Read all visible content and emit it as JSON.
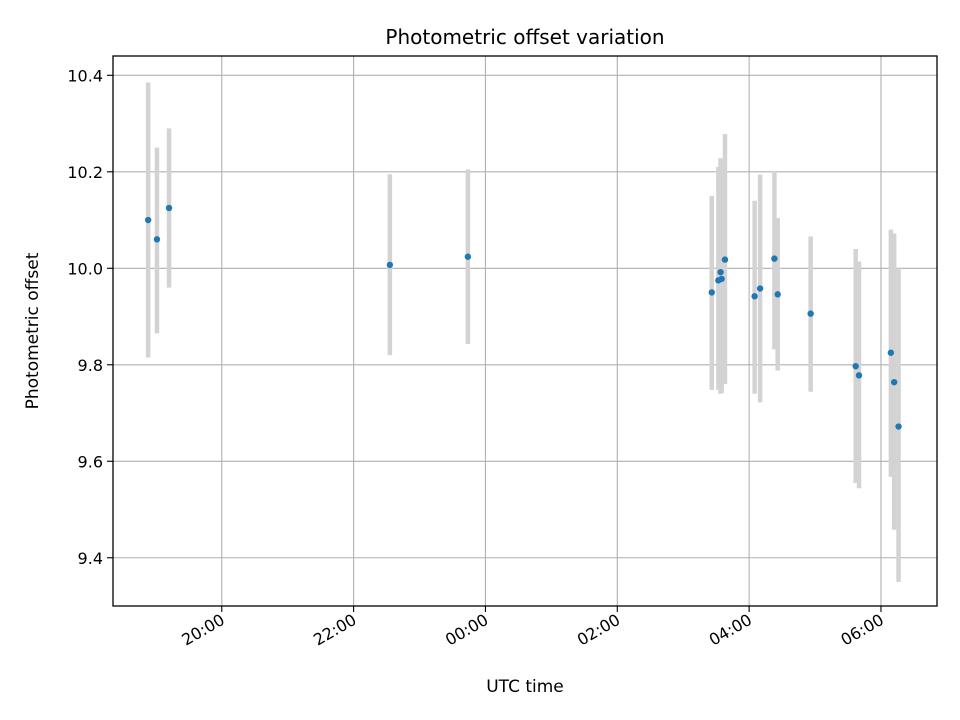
{
  "chart_data": {
    "type": "scatter",
    "title": "Photometric offset variation",
    "xlabel": "UTC time",
    "ylabel": "Photometric offset",
    "x_axis_type": "time",
    "xlim": [
      "18:21",
      "06:51"
    ],
    "ylim": [
      9.3,
      10.44
    ],
    "x_ticks": [
      "20:00",
      "22:00",
      "00:00",
      "02:00",
      "04:00",
      "06:00"
    ],
    "y_ticks": [
      9.4,
      9.6,
      9.8,
      10.0,
      10.2,
      10.4
    ],
    "grid": true,
    "colors": {
      "point": "#1f77b4",
      "errorbar": "#d3d3d3",
      "grid": "#b0b0b0"
    },
    "points": [
      {
        "x": "18:53",
        "y": 10.1,
        "err_low": 9.815,
        "err_high": 10.385
      },
      {
        "x": "19:01",
        "y": 10.06,
        "err_low": 9.865,
        "err_high": 10.25
      },
      {
        "x": "19:12",
        "y": 10.125,
        "err_low": 9.96,
        "err_high": 10.29
      },
      {
        "x": "22:33",
        "y": 10.007,
        "err_low": 9.82,
        "err_high": 10.195
      },
      {
        "x": "23:44",
        "y": 10.024,
        "err_low": 9.843,
        "err_high": 10.205
      },
      {
        "x": "03:26",
        "y": 9.95,
        "err_low": 9.748,
        "err_high": 10.15
      },
      {
        "x": "03:32",
        "y": 9.975,
        "err_low": 9.748,
        "err_high": 10.21
      },
      {
        "x": "03:34",
        "y": 9.992,
        "err_low": 9.74,
        "err_high": 10.228
      },
      {
        "x": "03:35",
        "y": 9.978,
        "err_low": 9.742,
        "err_high": 10.215
      },
      {
        "x": "03:38",
        "y": 10.018,
        "err_low": 9.76,
        "err_high": 10.278
      },
      {
        "x": "04:05",
        "y": 9.942,
        "err_low": 9.74,
        "err_high": 10.14
      },
      {
        "x": "04:10",
        "y": 9.958,
        "err_low": 9.722,
        "err_high": 10.194
      },
      {
        "x": "04:23",
        "y": 10.02,
        "err_low": 9.832,
        "err_high": 10.202
      },
      {
        "x": "04:26",
        "y": 9.946,
        "err_low": 9.788,
        "err_high": 10.104
      },
      {
        "x": "04:56",
        "y": 9.906,
        "err_low": 9.744,
        "err_high": 10.066
      },
      {
        "x": "05:37",
        "y": 9.797,
        "err_low": 9.555,
        "err_high": 10.04
      },
      {
        "x": "05:40",
        "y": 9.778,
        "err_low": 9.544,
        "err_high": 10.014
      },
      {
        "x": "06:09",
        "y": 9.825,
        "err_low": 9.568,
        "err_high": 10.08
      },
      {
        "x": "06:12",
        "y": 9.764,
        "err_low": 9.458,
        "err_high": 10.072
      },
      {
        "x": "06:16",
        "y": 9.672,
        "err_low": 9.35,
        "err_high": 10.0
      }
    ]
  }
}
